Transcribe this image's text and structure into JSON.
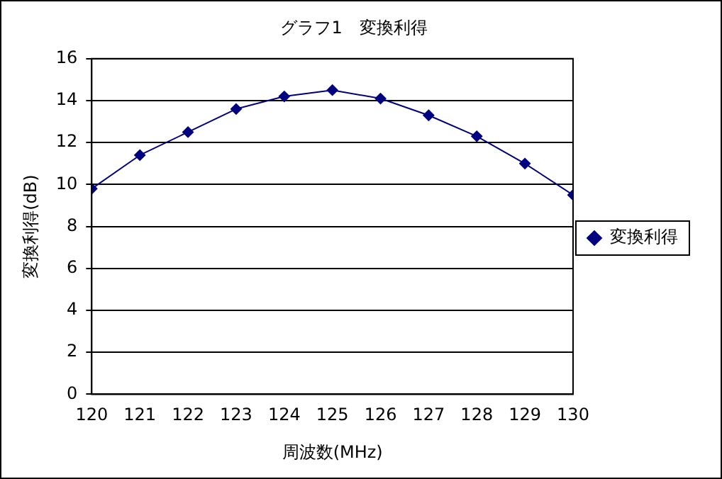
{
  "chart_data": {
    "type": "line",
    "title": "グラフ1　変換利得",
    "xlabel": "周波数(MHz)",
    "ylabel": "変換利得(dB)",
    "x": [
      120,
      121,
      122,
      123,
      124,
      125,
      126,
      127,
      128,
      129,
      130
    ],
    "series": [
      {
        "name": "変換利得",
        "color": "#000080",
        "values": [
          9.8,
          11.4,
          12.5,
          13.6,
          14.2,
          14.5,
          14.1,
          13.3,
          12.3,
          11.0,
          9.5
        ]
      }
    ],
    "xlim": [
      120,
      130
    ],
    "xticks": [
      120,
      121,
      122,
      123,
      124,
      125,
      126,
      127,
      128,
      129,
      130
    ],
    "ylim": [
      0,
      16
    ],
    "yticks": [
      0,
      2,
      4,
      6,
      8,
      10,
      12,
      14,
      16
    ],
    "grid": "y",
    "legend": "right",
    "marker": "diamond",
    "line_style": "solid"
  }
}
